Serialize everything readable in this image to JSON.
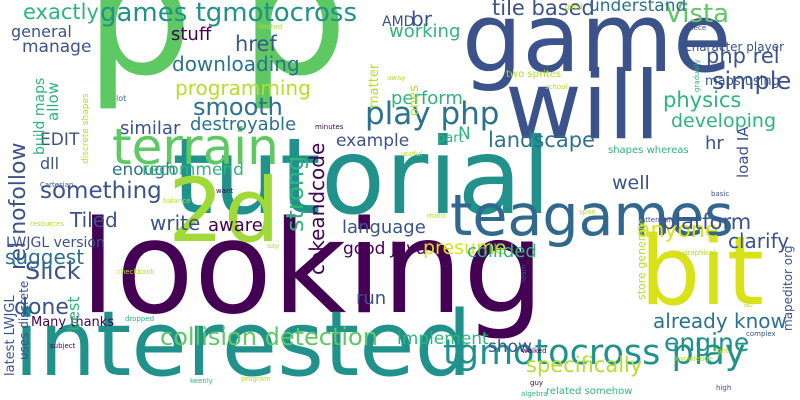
{
  "colors": {
    "background": "#ffffff",
    "palette": [
      "#440154",
      "#3b528b",
      "#21918c",
      "#5ec962",
      "#fde725"
    ]
  },
  "words": [
    {
      "text": "p",
      "color": "#5ec962"
    },
    {
      "text": "p",
      "color": "#5ec962"
    },
    {
      "text": "game",
      "color": "#3b528b"
    },
    {
      "text": "will",
      "color": "#3b528b"
    },
    {
      "text": "tutorial",
      "color": "#21918c"
    },
    {
      "text": "looking",
      "color": "#440154"
    },
    {
      "text": "interested",
      "color": "#21918c"
    },
    {
      "text": "2d",
      "color": "#a0da39"
    },
    {
      "text": "bit",
      "color": "#d8e219"
    },
    {
      "text": "teagames",
      "color": "#31688e"
    },
    {
      "text": "terrain",
      "color": "#5ec962"
    },
    {
      "text": "games tgmotocross",
      "color": "#21918c"
    },
    {
      "text": "tgmotocross play",
      "color": "#21918c"
    },
    {
      "text": "collision detection",
      "color": "#5ec962"
    },
    {
      "text": "play php",
      "color": "#2c728e"
    },
    {
      "text": "landscape",
      "color": "#2c728e"
    },
    {
      "text": "physics",
      "color": "#2fb47c"
    },
    {
      "text": "smooth",
      "color": "#2c728e"
    },
    {
      "text": "something",
      "color": "#3b528b"
    },
    {
      "text": "rel nofollow",
      "color": "#3b528b"
    },
    {
      "text": "href",
      "color": "#38598c"
    },
    {
      "text": "strong",
      "color": "#2fb47c"
    },
    {
      "text": "cokeandcode",
      "color": "#440154"
    },
    {
      "text": "Vista",
      "color": "#5ec962"
    },
    {
      "text": "php rel",
      "color": "#3b528b"
    },
    {
      "text": "simple",
      "color": "#3b528b"
    },
    {
      "text": "br",
      "color": "#3b528b"
    },
    {
      "text": "engine",
      "color": "#21918c"
    },
    {
      "text": "anyone",
      "color": "#d8e219"
    },
    {
      "text": "platform",
      "color": "#3b528b"
    },
    {
      "text": "specifically",
      "color": "#b5de2b"
    },
    {
      "text": "already know",
      "color": "#2c728e"
    },
    {
      "text": "Slick",
      "color": "#3b528b"
    },
    {
      "text": "done",
      "color": "#3b528b"
    },
    {
      "text": "exactly",
      "color": "#2fb47c"
    },
    {
      "text": "AMD",
      "color": "#3b528b"
    },
    {
      "text": "tile based",
      "color": "#3b528b"
    },
    {
      "text": "understand",
      "color": "#2c728e"
    },
    {
      "text": "general",
      "color": "#3b528b"
    },
    {
      "text": "manage",
      "color": "#3b528b"
    },
    {
      "text": "stuff",
      "color": "#440154"
    },
    {
      "text": "downloading",
      "color": "#2c728e"
    },
    {
      "text": "programming",
      "color": "#b5de2b"
    },
    {
      "text": "destroyable",
      "color": "#2c728e"
    },
    {
      "text": "similar",
      "color": "#3b528b"
    },
    {
      "text": "developing",
      "color": "#2fb47c"
    },
    {
      "text": "perform",
      "color": "#2fb47c"
    },
    {
      "text": "working",
      "color": "#2fb47c"
    },
    {
      "text": "example",
      "color": "#3b528b"
    },
    {
      "text": "enough",
      "color": "#2c728e"
    },
    {
      "text": "recommend",
      "color": "#2fb47c"
    },
    {
      "text": "well",
      "color": "#3b528b"
    },
    {
      "text": "write",
      "color": "#3b528b"
    },
    {
      "text": "Tiled",
      "color": "#3b528b"
    },
    {
      "text": "aware",
      "color": "#440154"
    },
    {
      "text": "language",
      "color": "#3b528b"
    },
    {
      "text": "good Java",
      "color": "#440154"
    },
    {
      "text": "presume",
      "color": "#d8e219"
    },
    {
      "text": "collided",
      "color": "#2fb47c"
    },
    {
      "text": "clarify",
      "color": "#3b528b"
    },
    {
      "text": "suggest",
      "color": "#2c728e"
    },
    {
      "text": "run",
      "color": "#3b528b"
    },
    {
      "text": "implement",
      "color": "#2fb47c"
    },
    {
      "text": "show",
      "color": "#3b528b"
    },
    {
      "text": "LWJGL version",
      "color": "#3b528b"
    },
    {
      "text": "EDIT",
      "color": "#3b528b"
    },
    {
      "text": "dll",
      "color": "#3b528b"
    },
    {
      "text": "Many thanks",
      "color": "#440154"
    },
    {
      "text": "allow",
      "color": "#2fb47c"
    },
    {
      "text": "build maps",
      "color": "#2fb47c"
    },
    {
      "text": "best",
      "color": "#2fb47c"
    },
    {
      "text": "latest LWJGL",
      "color": "#3b528b"
    },
    {
      "text": "uses discrete",
      "color": "#3b528b"
    },
    {
      "text": "matter",
      "color": "#b5de2b"
    },
    {
      "text": "ones",
      "color": "#b5de2b"
    },
    {
      "text": "part",
      "color": "#2fb47c"
    },
    {
      "text": "N",
      "color": "#2fb47c"
    },
    {
      "text": "hr",
      "color": "#3b528b"
    },
    {
      "text": "load IA",
      "color": "#3b528b"
    },
    {
      "text": "character player",
      "color": "#3b528b"
    },
    {
      "text": "maps using",
      "color": "#3b528b"
    },
    {
      "text": "shapes whereas",
      "color": "#2fb47c"
    },
    {
      "text": "two sprites",
      "color": "#b5de2b"
    },
    {
      "text": "mapeditor org",
      "color": "#3b528b"
    },
    {
      "text": "related somehow",
      "color": "#2fb47c"
    },
    {
      "text": "store generate",
      "color": "#b5de2b"
    },
    {
      "text": "discrete shapes",
      "color": "#b5de2b"
    },
    {
      "text": "lot",
      "color": "#2c728e"
    },
    {
      "text": "minutes",
      "color": "#440154"
    },
    {
      "text": "useful",
      "color": "#b5de2b"
    },
    {
      "text": "Cartesian",
      "color": "#3b528b"
    },
    {
      "text": "resources",
      "color": "#b5de2b"
    },
    {
      "text": "balance",
      "color": "#b5de2b"
    },
    {
      "text": "want",
      "color": "#440154"
    },
    {
      "text": "say",
      "color": "#b5de2b"
    },
    {
      "text": "checkbook",
      "color": "#b5de2b"
    },
    {
      "text": "dropped",
      "color": "#2fb47c"
    },
    {
      "text": "subject",
      "color": "#440154"
    },
    {
      "text": "keenly",
      "color": "#2fb47c"
    },
    {
      "text": "program",
      "color": "#b5de2b"
    },
    {
      "text": "learn",
      "color": "#3b528b"
    },
    {
      "text": "walked",
      "color": "#440154"
    },
    {
      "text": "guy",
      "color": "#440154"
    },
    {
      "text": "algebra",
      "color": "#2fb47c"
    },
    {
      "text": "complex",
      "color": "#3b528b"
    },
    {
      "text": "light",
      "color": "#b5de2b"
    },
    {
      "text": "knowledge",
      "color": "#b5de2b"
    },
    {
      "text": "high",
      "color": "#3b528b"
    },
    {
      "text": "attention",
      "color": "#3b528b"
    },
    {
      "text": "graphical",
      "color": "#b5de2b"
    },
    {
      "text": "math",
      "color": "#b5de2b"
    },
    {
      "text": "span",
      "color": "#b5de2b"
    },
    {
      "text": "basic",
      "color": "#3b528b"
    },
    {
      "text": "gradually",
      "color": "#2fb47c"
    },
    {
      "text": "apiece",
      "color": "#3b528b"
    },
    {
      "text": "limited",
      "color": "#b5de2b"
    },
    {
      "text": "good",
      "color": "#b5de2b"
    },
    {
      "text": "away",
      "color": "#b5de2b"
    },
    {
      "text": "school",
      "color": "#b5de2b"
    },
    {
      "text": "3D",
      "color": "#b5de2b"
    }
  ]
}
